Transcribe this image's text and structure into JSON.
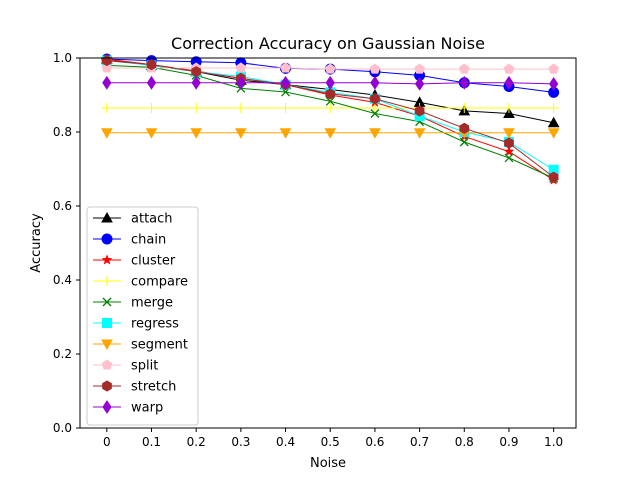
{
  "chart_data": {
    "type": "line",
    "title": "Correction Accuracy on Gaussian Noise",
    "xlabel": "Noise",
    "ylabel": "Accuracy",
    "x": [
      0,
      0.1,
      0.2,
      0.3,
      0.4,
      0.5,
      0.6,
      0.7,
      0.8,
      0.9,
      1.0
    ],
    "x_tick_labels": [
      "0",
      "0.1",
      "0.2",
      "0.3",
      "0.4",
      "0.5",
      "0.6",
      "0.7",
      "0.8",
      "0.9",
      "1.0"
    ],
    "y_ticks": [
      0.0,
      0.2,
      0.4,
      0.6,
      0.8,
      1.0
    ],
    "y_tick_labels": [
      "0.0",
      "0.2",
      "0.4",
      "0.6",
      "0.8",
      "1.0"
    ],
    "xlim": [
      -0.06,
      1.05
    ],
    "ylim": [
      0.0,
      1.0
    ],
    "grid": false,
    "legend_position": "lower-left",
    "series": [
      {
        "name": "attach",
        "color": "#000000",
        "marker": "triangle-up",
        "values": [
          0.997,
          0.98,
          0.963,
          0.94,
          0.928,
          0.915,
          0.9,
          0.88,
          0.857,
          0.85,
          0.825
        ]
      },
      {
        "name": "chain",
        "color": "#0000ff",
        "marker": "circle",
        "values": [
          0.997,
          0.993,
          0.99,
          0.987,
          0.972,
          0.97,
          0.963,
          0.953,
          0.933,
          0.923,
          0.907
        ]
      },
      {
        "name": "cluster",
        "color": "#ff0000",
        "marker": "star",
        "values": [
          0.997,
          0.982,
          0.965,
          0.945,
          0.928,
          0.9,
          0.88,
          0.843,
          0.788,
          0.747,
          0.67
        ]
      },
      {
        "name": "compare",
        "color": "#ffff00",
        "marker": "plus",
        "values": [
          0.865,
          0.865,
          0.865,
          0.865,
          0.865,
          0.865,
          0.865,
          0.865,
          0.865,
          0.865,
          0.865
        ]
      },
      {
        "name": "merge",
        "color": "#008000",
        "marker": "x",
        "values": [
          0.98,
          0.975,
          0.953,
          0.918,
          0.908,
          0.883,
          0.85,
          0.828,
          0.773,
          0.73,
          0.675
        ]
      },
      {
        "name": "regress",
        "color": "#00ffff",
        "marker": "square",
        "values": [
          0.993,
          0.98,
          0.963,
          0.95,
          0.928,
          0.907,
          0.89,
          0.843,
          0.8,
          0.773,
          0.698
        ]
      },
      {
        "name": "segment",
        "color": "#ffa500",
        "marker": "triangle-down",
        "values": [
          0.798,
          0.798,
          0.798,
          0.798,
          0.798,
          0.798,
          0.798,
          0.798,
          0.798,
          0.798,
          0.798
        ]
      },
      {
        "name": "split",
        "color": "#ffc0cb",
        "marker": "pentagon",
        "values": [
          0.973,
          0.973,
          0.973,
          0.973,
          0.973,
          0.97,
          0.97,
          0.97,
          0.97,
          0.97,
          0.97
        ]
      },
      {
        "name": "stretch",
        "color": "#a52a2a",
        "marker": "hexagon",
        "values": [
          0.993,
          0.982,
          0.963,
          0.945,
          0.928,
          0.903,
          0.89,
          0.857,
          0.81,
          0.77,
          0.678
        ]
      },
      {
        "name": "warp",
        "color": "#9400d3",
        "marker": "diamond",
        "values": [
          0.933,
          0.933,
          0.933,
          0.933,
          0.933,
          0.933,
          0.933,
          0.93,
          0.933,
          0.933,
          0.93
        ]
      }
    ]
  }
}
